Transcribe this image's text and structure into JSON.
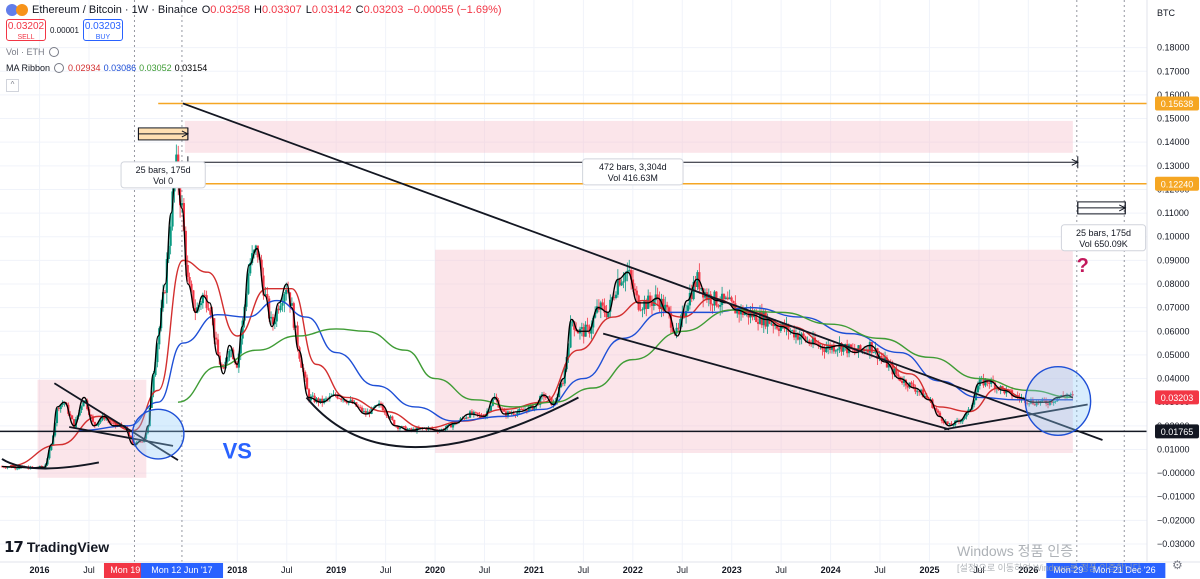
{
  "header": {
    "symbol": "Ethereum / Bitcoin · 1W · Binance",
    "ohlc": [
      {
        "k": "O",
        "v": "0.03258"
      },
      {
        "k": "H",
        "v": "0.03307"
      },
      {
        "k": "L",
        "v": "0.03142"
      },
      {
        "k": "C",
        "v": "0.03203"
      },
      {
        "k": "",
        "v": "−0.00055 (−1.69%)"
      }
    ],
    "sell_price": "0.03202",
    "sell_label": "SELL",
    "spread": "0.00001",
    "buy_price": "0.03203",
    "buy_label": "BUY",
    "vol_label": "Vol · ETH",
    "ma_label": "MA Ribbon",
    "ma_values": [
      "0.02934",
      "0.03086",
      "0.03052",
      "0.03154"
    ],
    "collapse_icon": "^"
  },
  "currency": "BTC",
  "colors": {
    "up": "#089981",
    "down": "#f23645",
    "ma1": "#000000",
    "ma2": "#d32f2f",
    "ma3": "#1e4fd6",
    "ma4": "#3f9c35",
    "hline": "#f5a623",
    "zone": "#f7c6d0"
  },
  "chart_data": {
    "type": "candlestick",
    "y_axis": {
      "min": -0.03,
      "max": 0.19,
      "ticks": [
        0.18,
        0.17,
        0.16,
        0.15,
        0.14,
        0.13,
        0.12,
        0.11,
        0.1,
        0.09,
        0.08,
        0.07,
        0.06,
        0.05,
        0.04,
        0.03,
        0.02,
        0.01,
        0.0,
        -0.01,
        -0.02,
        -0.03
      ],
      "tick_labels": [
        "0.18000",
        "0.17000",
        "0.16000",
        "0.15000",
        "0.14000",
        "0.13000",
        "0.12000",
        "0.11000",
        "0.10000",
        "0.09000",
        "0.08000",
        "0.07000",
        "0.06000",
        "0.05000",
        "0.04000",
        "0.03000",
        "0.02000",
        "0.01000",
        "−0.00000",
        "−0.01000",
        "−0.02000",
        "−0.03000"
      ],
      "price_tags": [
        {
          "value": 0.15638,
          "label": "0.15638",
          "color": "#f5a623"
        },
        {
          "value": 0.1224,
          "label": "0.12240",
          "color": "#f5a623"
        },
        {
          "value": 0.03203,
          "label": "0.03203",
          "color": "#f23645"
        },
        {
          "value": 0.01765,
          "label": "0.01765",
          "color": "#131722"
        }
      ]
    },
    "x_axis": {
      "min": 2015.6,
      "max": 2027.2,
      "labels": [
        {
          "t": 2016.0,
          "label": "2016"
        },
        {
          "t": 2016.5,
          "label": "Jul"
        },
        {
          "t": 2018.0,
          "label": "2018"
        },
        {
          "t": 2018.5,
          "label": "Jul"
        },
        {
          "t": 2019.0,
          "label": "2019"
        },
        {
          "t": 2019.5,
          "label": "Jul"
        },
        {
          "t": 2020.0,
          "label": "2020"
        },
        {
          "t": 2020.5,
          "label": "Jul"
        },
        {
          "t": 2021.0,
          "label": "2021"
        },
        {
          "t": 2021.5,
          "label": "Jul"
        },
        {
          "t": 2022.0,
          "label": "2022"
        },
        {
          "t": 2022.5,
          "label": "Jul"
        },
        {
          "t": 2023.0,
          "label": "2023"
        },
        {
          "t": 2023.5,
          "label": "Jul"
        },
        {
          "t": 2024.0,
          "label": "2024"
        },
        {
          "t": 2024.5,
          "label": "Jul"
        },
        {
          "t": 2025.0,
          "label": "2025"
        },
        {
          "t": 2025.5,
          "label": "Jul"
        },
        {
          "t": 2026.0,
          "label": "2026"
        }
      ],
      "markers": [
        {
          "t": 2016.96,
          "label": "Mon 19 Dec",
          "color": "#f23645"
        },
        {
          "t": 2017.44,
          "label": "Mon 12 Jun '17",
          "color": "#2962ff"
        },
        {
          "t": 2026.49,
          "label": "Mon 29 Jun",
          "color": "#2962ff"
        },
        {
          "t": 2026.97,
          "label": "Mon 21 Dec '26",
          "color": "#2962ff"
        }
      ]
    },
    "close_path": [
      [
        2015.62,
        0.0028
      ],
      [
        2015.75,
        0.0025
      ],
      [
        2015.9,
        0.0022
      ],
      [
        2016.05,
        0.0025
      ],
      [
        2016.12,
        0.012
      ],
      [
        2016.18,
        0.028
      ],
      [
        2016.25,
        0.03
      ],
      [
        2016.35,
        0.02
      ],
      [
        2016.45,
        0.032
      ],
      [
        2016.55,
        0.02
      ],
      [
        2016.65,
        0.024
      ],
      [
        2016.75,
        0.02
      ],
      [
        2016.85,
        0.02
      ],
      [
        2016.95,
        0.012
      ],
      [
        2017.05,
        0.014
      ],
      [
        2017.1,
        0.02
      ],
      [
        2017.15,
        0.042
      ],
      [
        2017.2,
        0.058
      ],
      [
        2017.27,
        0.08
      ],
      [
        2017.33,
        0.11
      ],
      [
        2017.38,
        0.13
      ],
      [
        2017.44,
        0.112
      ],
      [
        2017.5,
        0.08
      ],
      [
        2017.58,
        0.068
      ],
      [
        2017.65,
        0.075
      ],
      [
        2017.72,
        0.072
      ],
      [
        2017.8,
        0.05
      ],
      [
        2017.86,
        0.042
      ],
      [
        2017.92,
        0.054
      ],
      [
        2018.0,
        0.046
      ],
      [
        2018.05,
        0.062
      ],
      [
        2018.12,
        0.088
      ],
      [
        2018.2,
        0.095
      ],
      [
        2018.28,
        0.075
      ],
      [
        2018.35,
        0.062
      ],
      [
        2018.42,
        0.072
      ],
      [
        2018.5,
        0.08
      ],
      [
        2018.55,
        0.07
      ],
      [
        2018.62,
        0.052
      ],
      [
        2018.72,
        0.032
      ],
      [
        2018.85,
        0.03
      ],
      [
        2019.0,
        0.033
      ],
      [
        2019.15,
        0.03
      ],
      [
        2019.3,
        0.025
      ],
      [
        2019.45,
        0.029
      ],
      [
        2019.6,
        0.02
      ],
      [
        2019.75,
        0.018
      ],
      [
        2019.9,
        0.019
      ],
      [
        2020.05,
        0.018
      ],
      [
        2020.2,
        0.021
      ],
      [
        2020.35,
        0.025
      ],
      [
        2020.5,
        0.024
      ],
      [
        2020.6,
        0.032
      ],
      [
        2020.7,
        0.025
      ],
      [
        2020.85,
        0.026
      ],
      [
        2021.0,
        0.028
      ],
      [
        2021.1,
        0.033
      ],
      [
        2021.2,
        0.029
      ],
      [
        2021.3,
        0.04
      ],
      [
        2021.38,
        0.065
      ],
      [
        2021.45,
        0.06
      ],
      [
        2021.55,
        0.06
      ],
      [
        2021.65,
        0.07
      ],
      [
        2021.75,
        0.068
      ],
      [
        2021.85,
        0.082
      ],
      [
        2021.95,
        0.085
      ],
      [
        2022.05,
        0.072
      ],
      [
        2022.15,
        0.072
      ],
      [
        2022.25,
        0.074
      ],
      [
        2022.35,
        0.068
      ],
      [
        2022.45,
        0.058
      ],
      [
        2022.55,
        0.073
      ],
      [
        2022.65,
        0.082
      ],
      [
        2022.75,
        0.075
      ],
      [
        2022.85,
        0.073
      ],
      [
        2022.95,
        0.072
      ],
      [
        2023.05,
        0.069
      ],
      [
        2023.2,
        0.067
      ],
      [
        2023.35,
        0.065
      ],
      [
        2023.5,
        0.062
      ],
      [
        2023.65,
        0.059
      ],
      [
        2023.8,
        0.055
      ],
      [
        2023.95,
        0.053
      ],
      [
        2024.1,
        0.054
      ],
      [
        2024.25,
        0.051
      ],
      [
        2024.4,
        0.054
      ],
      [
        2024.55,
        0.047
      ],
      [
        2024.7,
        0.04
      ],
      [
        2024.85,
        0.036
      ],
      [
        2025.0,
        0.031
      ],
      [
        2025.1,
        0.024
      ],
      [
        2025.2,
        0.02
      ],
      [
        2025.3,
        0.022
      ],
      [
        2025.4,
        0.026
      ],
      [
        2025.5,
        0.038
      ],
      [
        2025.6,
        0.039
      ],
      [
        2025.75,
        0.035
      ],
      [
        2025.9,
        0.032
      ],
      [
        2026.05,
        0.03
      ],
      [
        2026.2,
        0.03
      ],
      [
        2026.3,
        0.032
      ],
      [
        2026.4,
        0.033
      ],
      [
        2026.45,
        0.032
      ]
    ],
    "ma_lines": [
      {
        "key": "ma2",
        "color": "#d32f2f",
        "points": [
          [
            2015.7,
            0.003
          ],
          [
            2016.2,
            0.012
          ],
          [
            2016.6,
            0.024
          ],
          [
            2016.95,
            0.018
          ],
          [
            2017.2,
            0.035
          ],
          [
            2017.45,
            0.09
          ],
          [
            2017.7,
            0.085
          ],
          [
            2018.0,
            0.058
          ],
          [
            2018.3,
            0.078
          ],
          [
            2018.55,
            0.078
          ],
          [
            2018.8,
            0.046
          ],
          [
            2019.1,
            0.032
          ],
          [
            2019.5,
            0.026
          ],
          [
            2019.9,
            0.019
          ],
          [
            2020.3,
            0.022
          ],
          [
            2020.7,
            0.027
          ],
          [
            2021.1,
            0.03
          ],
          [
            2021.45,
            0.052
          ],
          [
            2021.8,
            0.066
          ],
          [
            2022.1,
            0.073
          ],
          [
            2022.5,
            0.066
          ],
          [
            2022.8,
            0.074
          ],
          [
            2023.2,
            0.068
          ],
          [
            2023.6,
            0.062
          ],
          [
            2024.0,
            0.054
          ],
          [
            2024.4,
            0.052
          ],
          [
            2024.8,
            0.042
          ],
          [
            2025.1,
            0.028
          ],
          [
            2025.4,
            0.026
          ],
          [
            2025.7,
            0.036
          ],
          [
            2026.0,
            0.031
          ],
          [
            2026.45,
            0.031
          ]
        ]
      },
      {
        "key": "ma3",
        "color": "#1e4fd6",
        "points": [
          [
            2016.4,
            0.018
          ],
          [
            2016.9,
            0.02
          ],
          [
            2017.2,
            0.03
          ],
          [
            2017.45,
            0.055
          ],
          [
            2017.8,
            0.067
          ],
          [
            2018.1,
            0.066
          ],
          [
            2018.4,
            0.073
          ],
          [
            2018.7,
            0.066
          ],
          [
            2019.0,
            0.051
          ],
          [
            2019.4,
            0.037
          ],
          [
            2019.8,
            0.028
          ],
          [
            2020.2,
            0.022
          ],
          [
            2020.7,
            0.024
          ],
          [
            2021.1,
            0.027
          ],
          [
            2021.5,
            0.04
          ],
          [
            2021.9,
            0.057
          ],
          [
            2022.3,
            0.068
          ],
          [
            2022.8,
            0.068
          ],
          [
            2023.2,
            0.07
          ],
          [
            2023.7,
            0.066
          ],
          [
            2024.2,
            0.059
          ],
          [
            2024.7,
            0.051
          ],
          [
            2025.1,
            0.039
          ],
          [
            2025.5,
            0.032
          ],
          [
            2025.9,
            0.031
          ],
          [
            2026.45,
            0.031
          ]
        ]
      },
      {
        "key": "ma4",
        "color": "#3f9c35",
        "points": [
          [
            2017.4,
            0.03
          ],
          [
            2017.8,
            0.045
          ],
          [
            2018.2,
            0.052
          ],
          [
            2018.6,
            0.058
          ],
          [
            2019.0,
            0.061
          ],
          [
            2019.3,
            0.06
          ],
          [
            2019.7,
            0.052
          ],
          [
            2020.0,
            0.04
          ],
          [
            2020.4,
            0.031
          ],
          [
            2020.8,
            0.028
          ],
          [
            2021.2,
            0.03
          ],
          [
            2021.6,
            0.036
          ],
          [
            2022.0,
            0.048
          ],
          [
            2022.5,
            0.06
          ],
          [
            2023.0,
            0.069
          ],
          [
            2023.5,
            0.068
          ],
          [
            2024.0,
            0.063
          ],
          [
            2024.5,
            0.057
          ],
          [
            2025.0,
            0.049
          ],
          [
            2025.5,
            0.04
          ],
          [
            2026.0,
            0.035
          ],
          [
            2026.45,
            0.032
          ]
        ]
      }
    ],
    "zones": [
      {
        "t1": 2015.98,
        "t2": 2017.08,
        "v1": -0.002,
        "v2": 0.0395
      },
      {
        "t1": 2017.47,
        "t2": 2026.45,
        "v1": 0.1355,
        "v2": 0.149
      },
      {
        "t1": 2020.0,
        "t2": 2026.45,
        "v1": 0.0085,
        "v2": 0.0945
      }
    ],
    "hlines": [
      {
        "value": 0.15638,
        "t1": 2017.2,
        "color": "#f5a623"
      },
      {
        "value": 0.1224,
        "t1": 2017.05,
        "color": "#f5a623"
      },
      {
        "value": 0.01765,
        "t1": 2015.6,
        "color": "#131722"
      }
    ],
    "trendlines": [
      [
        [
          2017.45,
          0.1564
        ],
        [
          2026.75,
          0.014
        ]
      ],
      [
        [
          2016.15,
          0.038
        ],
        [
          2017.4,
          0.0055
        ]
      ],
      [
        [
          2016.3,
          0.0195
        ],
        [
          2017.35,
          0.0115
        ]
      ],
      [
        [
          2021.7,
          0.059
        ],
        [
          2025.2,
          0.0185
        ]
      ],
      [
        [
          2025.15,
          0.0185
        ],
        [
          2026.6,
          0.029
        ]
      ]
    ],
    "arcs": [
      [
        [
          2015.62,
          0.006
        ],
        [
          2016.0,
          0.002
        ],
        [
          2016.6,
          0.0045
        ]
      ],
      [
        [
          2018.7,
          0.032
        ],
        [
          2019.8,
          0.011
        ],
        [
          2021.45,
          0.032
        ]
      ]
    ],
    "circles": [
      {
        "t": 2017.2,
        "v": 0.0165,
        "rx": 0.26,
        "rv": 0.0105
      },
      {
        "t": 2026.3,
        "v": 0.0305,
        "rx": 0.33,
        "rv": 0.0145
      }
    ],
    "range_boxes": [
      {
        "t1": 2017.0,
        "t2": 2017.5,
        "v": 0.1435,
        "fill": "#ffe0b2"
      },
      {
        "t1": 2026.5,
        "t2": 2026.98,
        "v": 0.1122,
        "fill": "none"
      }
    ],
    "arrows": [
      {
        "t1": 2017.0,
        "t2": 2017.5,
        "v": 0.1435
      },
      {
        "t1": 2017.5,
        "t2": 2026.5,
        "v": 0.1315
      },
      {
        "t1": 2026.5,
        "t2": 2026.98,
        "v": 0.1122
      }
    ],
    "annotations": [
      {
        "id": "m1",
        "line1": "25 bars, 175d",
        "line2": "Vol 0",
        "t": 2017.25,
        "v": 0.127
      },
      {
        "id": "m2",
        "line1": "472 bars, 3,304d",
        "line2": "Vol 416.63M",
        "t": 2022.0,
        "v": 0.1283
      },
      {
        "id": "m3",
        "line1": "25 bars, 175d",
        "line2": "Vol 650.09K",
        "t": 2026.76,
        "v": 0.1004
      },
      {
        "id": "vs",
        "text": "VS",
        "t": 2018.0,
        "v": 0.0062,
        "color": "#2962ff",
        "size": 22
      },
      {
        "id": "q",
        "text": "?",
        "t": 2026.55,
        "v": 0.085,
        "color": "#c2185b",
        "size": 20
      }
    ]
  },
  "branding": {
    "logo_mark": "𝟭𝟳",
    "logo_text": "TradingView",
    "watermark_line1": "Windows 정품 인증",
    "watermark_line2": "[설정]으로 이동하여 Windows를 정품 인증합니다.",
    "gear_icon": "⚙"
  }
}
